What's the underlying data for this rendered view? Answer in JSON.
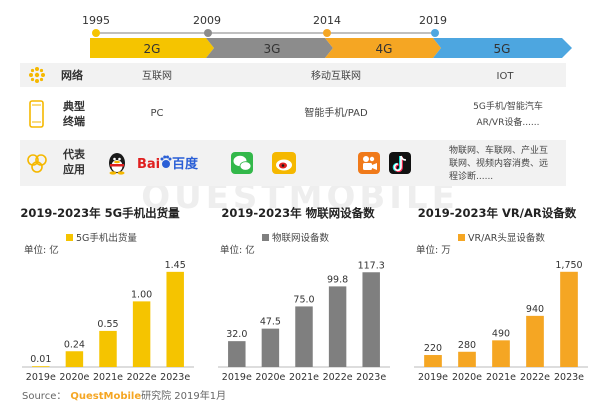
{
  "timeline": {
    "years": [
      "1995",
      "2009",
      "2014",
      "2019"
    ],
    "segments": [
      {
        "label": "2G",
        "color": "#f5c400"
      },
      {
        "label": "3G",
        "color": "#8c8c8c"
      },
      {
        "label": "4G",
        "color": "#f5a623"
      },
      {
        "label": "5G",
        "color": "#4da6e0"
      }
    ]
  },
  "rows": [
    {
      "label": "网络",
      "icon": "network-icon",
      "cells": [
        "互联网",
        "移动互联网",
        "IOT"
      ]
    },
    {
      "label": "典型 终端",
      "label_lines": [
        "典型",
        "终端"
      ],
      "icon": "phone-icon",
      "cells": [
        "PC",
        "智能手机/PAD",
        "5G手机/智能汽车 AR/VR设备......"
      ],
      "cell3_lines": [
        "5G手机/智能汽车",
        "AR/VR设备......"
      ]
    },
    {
      "label": "代表 应用",
      "label_lines": [
        "代表",
        "应用"
      ],
      "icon": "apps-icon",
      "apps": [
        {
          "name": "QQ",
          "icon": "qq-icon"
        },
        {
          "name": "百度",
          "text": "Bai",
          "text2": "百度",
          "icon": "baidu-logo"
        },
        {
          "name": "微信",
          "icon": "wechat-icon"
        },
        {
          "name": "微博",
          "icon": "weibo-icon"
        },
        {
          "name": "快手",
          "icon": "kuaishou-icon"
        },
        {
          "name": "抖音",
          "icon": "douyin-icon"
        }
      ],
      "iot_lines": [
        "物联网、车联网、产业互",
        "联网、视频内容消费、远",
        "程诊断......"
      ]
    }
  ],
  "watermark": "QUESTMOBILE",
  "chart_data": [
    {
      "type": "bar",
      "title": "2019-2023年 5G手机出货量",
      "unit_label": "单位: 亿",
      "legend": "5G手机出货量",
      "categories": [
        "2019e",
        "2020e",
        "2021e",
        "2022e",
        "2023e"
      ],
      "values": [
        0.01,
        0.24,
        0.55,
        1.0,
        1.45
      ],
      "value_labels": [
        "0.01",
        "0.24",
        "0.55",
        "1.00",
        "1.45"
      ],
      "ylim": [
        0,
        1.6
      ],
      "color": "#f5c400"
    },
    {
      "type": "bar",
      "title": "2019-2023年 物联网设备数",
      "unit_label": "单位: 亿",
      "legend": "物联网设备数",
      "categories": [
        "2019e",
        "2020e",
        "2021e",
        "2022e",
        "2023e"
      ],
      "values": [
        32.0,
        47.5,
        75.0,
        99.8,
        117.3
      ],
      "value_labels": [
        "32.0",
        "47.5",
        "75.0",
        "99.8",
        "117.3"
      ],
      "ylim": [
        0,
        130
      ],
      "color": "#7f7f7f"
    },
    {
      "type": "bar",
      "title": "2019-2023年 VR/AR设备数",
      "unit_label": "单位: 万",
      "legend": "VR/AR头显设备数",
      "categories": [
        "2019e",
        "2020e",
        "2021e",
        "2022e",
        "2023e"
      ],
      "values": [
        220,
        280,
        490,
        940,
        1750
      ],
      "value_labels": [
        "220",
        "280",
        "490",
        "940",
        "1,750"
      ],
      "ylim": [
        0,
        1930
      ],
      "color": "#f5a623"
    }
  ],
  "source": {
    "prefix": "Source：",
    "brand": "QuestMobile",
    "suffix": "研究院 2019年1月"
  }
}
